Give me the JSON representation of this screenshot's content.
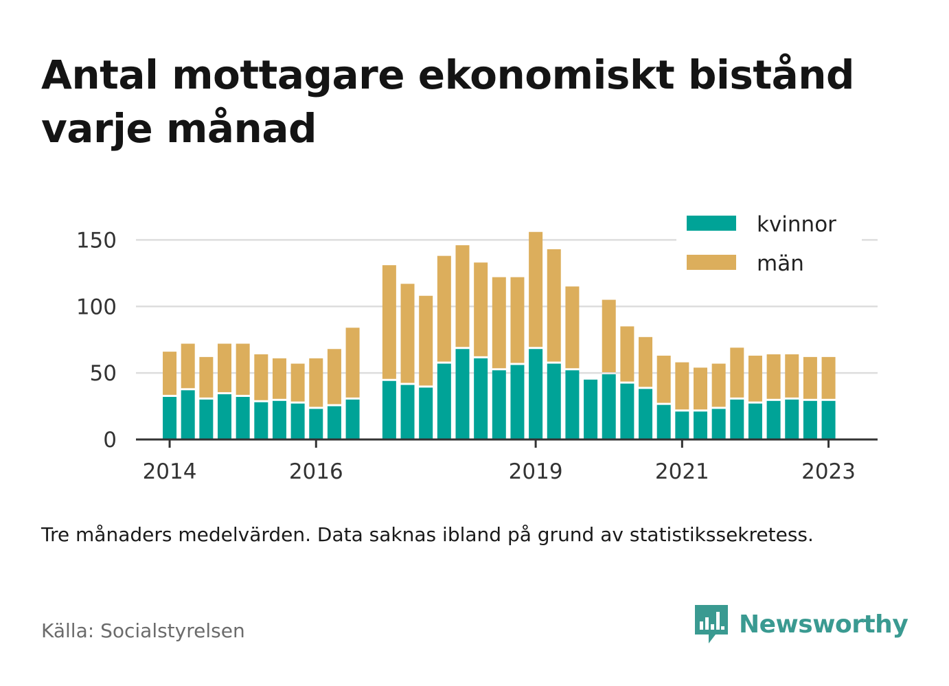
{
  "title": "Antal mottagare ekonomiskt bistånd varje månad",
  "note": "Tre månaders medelvärden. Data saknas ibland på grund av statistikssekretess.",
  "source": "Källa: Socialstyrelsen",
  "brand": {
    "name": "Newsworthy",
    "icon": "newsworthy-logo-icon",
    "color": "#3a9a91"
  },
  "colors": {
    "kvinnor": "#00a397",
    "man": "#dcae5c",
    "axis": "#333333",
    "grid": "#dddddd"
  },
  "chart_data": {
    "type": "bar",
    "stacked": true,
    "x_unit": "quarter",
    "x_ticks": [
      "2014",
      "2016",
      "2019",
      "2021",
      "2023"
    ],
    "x_tick_values": [
      2014.0,
      2016.0,
      2019.0,
      2021.0,
      2023.0
    ],
    "xlim": [
      2013.54,
      2023.67
    ],
    "ylim": [
      0,
      160
    ],
    "y_ticks": [
      0,
      50,
      100,
      150
    ],
    "grid": true,
    "legend_position": "top-right",
    "x": [
      2014.0,
      2014.25,
      2014.5,
      2014.75,
      2015.0,
      2015.25,
      2015.5,
      2015.75,
      2016.0,
      2016.25,
      2016.5,
      2017.0,
      2017.25,
      2017.5,
      2017.75,
      2018.0,
      2018.25,
      2018.5,
      2018.75,
      2019.0,
      2019.25,
      2019.5,
      2019.75,
      2020.0,
      2020.25,
      2020.5,
      2020.75,
      2021.0,
      2021.25,
      2021.5,
      2021.75,
      2022.0,
      2022.25,
      2022.5,
      2022.75,
      2023.0
    ],
    "series": [
      {
        "name": "kvinnor",
        "values": [
          32,
          37,
          30,
          34,
          32,
          28,
          29,
          27,
          23,
          25,
          30,
          44,
          41,
          39,
          57,
          68,
          61,
          52,
          56,
          68,
          57,
          52,
          45,
          49,
          42,
          38,
          26,
          21,
          21,
          23,
          30,
          27,
          29,
          30,
          29,
          29
        ]
      },
      {
        "name": "män",
        "values": [
          34,
          35,
          32,
          38,
          40,
          36,
          32,
          30,
          38,
          43,
          54,
          87,
          76,
          69,
          81,
          78,
          72,
          70,
          66,
          88,
          86,
          63,
          0,
          56,
          43,
          39,
          37,
          37,
          33,
          34,
          39,
          36,
          35,
          34,
          33,
          33
        ]
      }
    ]
  }
}
